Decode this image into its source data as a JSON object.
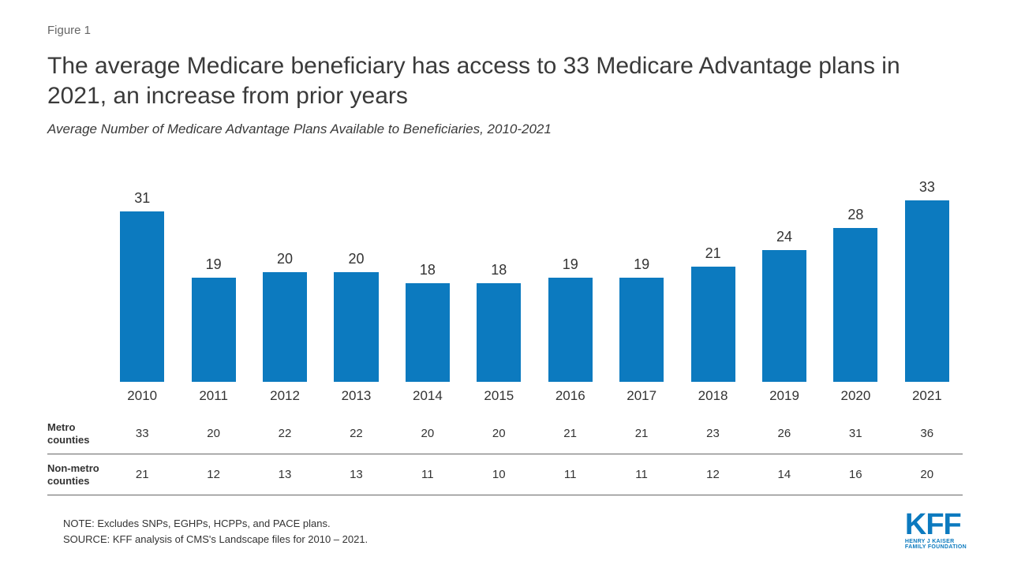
{
  "header": {
    "figure_label": "Figure 1",
    "title": "The average Medicare beneficiary has access to 33 Medicare Advantage plans in 2021, an increase from prior years",
    "subtitle": "Average Number of Medicare Advantage Plans Available to Beneficiaries, 2010-2021"
  },
  "chart": {
    "type": "bar",
    "categories": [
      "2010",
      "2011",
      "2012",
      "2013",
      "2014",
      "2015",
      "2016",
      "2017",
      "2018",
      "2019",
      "2020",
      "2021"
    ],
    "values": [
      31,
      19,
      20,
      20,
      18,
      18,
      19,
      19,
      21,
      24,
      28,
      33
    ],
    "ylim": [
      0,
      33
    ],
    "bar_color": "#0c7abf",
    "background_color": "#ffffff",
    "label_fontsize": 18,
    "label_color": "#333333",
    "axis_fontsize": 17,
    "bar_width_pct": 62
  },
  "table": {
    "rows": [
      {
        "label": "Metro counties",
        "values": [
          33,
          20,
          22,
          22,
          20,
          20,
          21,
          21,
          23,
          26,
          31,
          36
        ]
      },
      {
        "label": "Non-metro counties",
        "values": [
          21,
          12,
          13,
          13,
          11,
          10,
          11,
          11,
          12,
          14,
          16,
          20
        ]
      }
    ],
    "label_fontsize": 13,
    "cell_fontsize": 15,
    "border_color": "#666666"
  },
  "footer": {
    "note": "NOTE: Excludes SNPs, EGHPs, HCPPs, and PACE plans.",
    "source": "SOURCE: KFF analysis of CMS's Landscape files for 2010 – 2021."
  },
  "logo": {
    "text": "KFF",
    "line1": "HENRY J KAISER",
    "line2": "FAMILY FOUNDATION",
    "color": "#0c7abf"
  }
}
